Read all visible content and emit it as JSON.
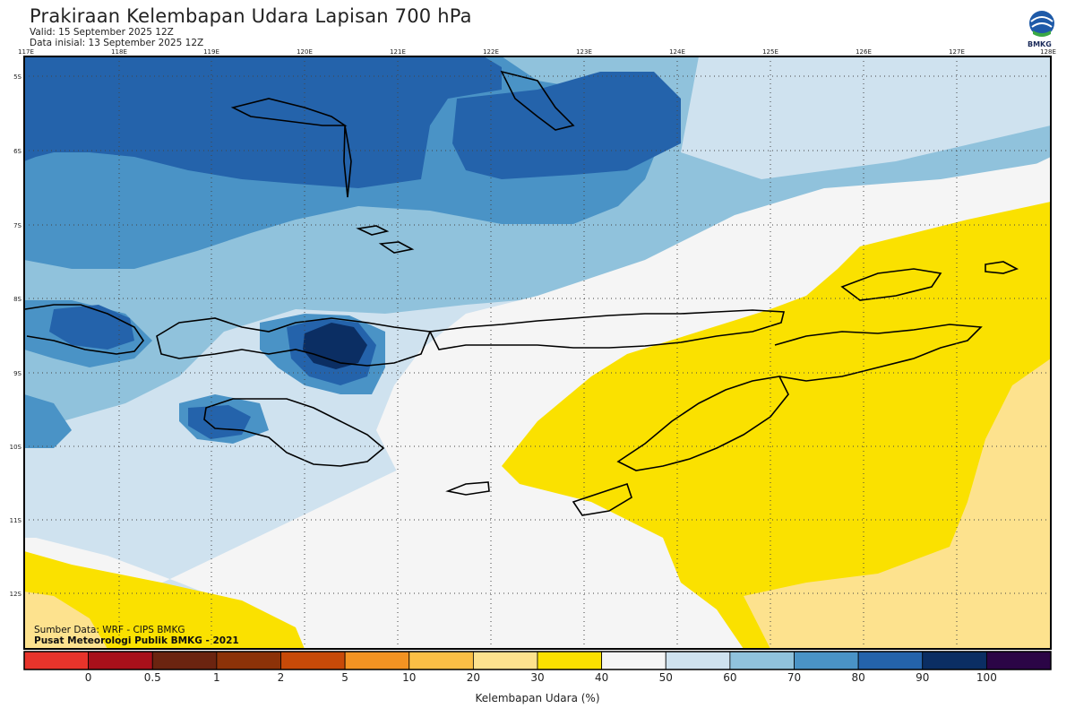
{
  "header": {
    "title": "Prakiraan Kelembapan Udara Lapisan 700 hPa",
    "valid": "Valid: 15 September 2025 12Z",
    "init": "Data inisial: 13 September 2025 12Z",
    "logo_text": "BMKG"
  },
  "axes": {
    "lon_labels": [
      "117E",
      "118E",
      "119E",
      "120E",
      "121E",
      "122E",
      "123E",
      "124E",
      "125E",
      "126E",
      "127E",
      "128E"
    ],
    "lat_labels": [
      "5S",
      "6S",
      "7S",
      "8S",
      "9S",
      "10S",
      "11S",
      "12S"
    ]
  },
  "colorbar": {
    "title": "Kelembapan Udara (%)",
    "tick_labels": [
      "0",
      "0.5",
      "1",
      "2",
      "5",
      "10",
      "20",
      "30",
      "40",
      "50",
      "60",
      "70",
      "80",
      "90",
      "100"
    ],
    "colors": [
      "#e8342b",
      "#a8101a",
      "#6b2410",
      "#8c3208",
      "#c84a08",
      "#f39322",
      "#fbbf45",
      "#fde28e",
      "#fae100",
      "#f5f5f5",
      "#cfe2ef",
      "#90c2dc",
      "#4a93c6",
      "#2463ab",
      "#0b2e63",
      "#2b0546"
    ]
  },
  "credits": {
    "source": "Sumber Data: WRF - CIPS BMKG",
    "org": "Pusat Meteorologi Publik BMKG - 2021"
  }
}
